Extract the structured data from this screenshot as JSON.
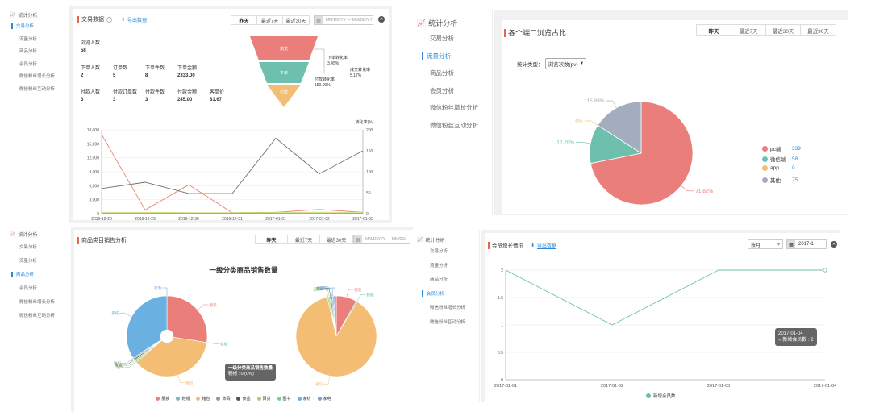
{
  "panel_tl": {
    "sidebar": {
      "header": "统计分析",
      "items": [
        "交易分析",
        "流量分析",
        "商品分析",
        "会员分析",
        "微信粉丝增长分析",
        "微信粉丝互动分析"
      ],
      "active": 0
    },
    "title": "交易数据",
    "help": "?",
    "export": "导出数据",
    "tabs": [
      "昨天",
      "最近7天",
      "最近30天"
    ],
    "active_tab": 0,
    "date_placeholder": "MM/DD/YY — MM/DD/YY",
    "funnel": {
      "labels": [
        "浏览",
        "下单",
        "付款"
      ],
      "annotations": [
        {
          "label": "下单转化率",
          "value": "3.45%"
        },
        {
          "label": "成交转化率",
          "value": "5.17%"
        },
        {
          "label": "付款转化率",
          "value": "150.00%"
        }
      ]
    },
    "metrics": [
      {
        "label": "浏览人数",
        "value": "58"
      },
      {
        "label": "下单人数",
        "value": "2"
      },
      {
        "label": "订单数",
        "value": "5"
      },
      {
        "label": "下单件数",
        "value": "8"
      },
      {
        "label": "下单金额",
        "value": "2333.00"
      },
      {
        "label": "付款人数",
        "value": "3"
      },
      {
        "label": "付款订单数",
        "value": "3"
      },
      {
        "label": "付款件数",
        "value": "3"
      },
      {
        "label": "付款金额",
        "value": "245.00"
      },
      {
        "label": "客单价",
        "value": "81.67"
      }
    ],
    "right_axis_title": "转化率(%)",
    "chart_data": {
      "type": "line",
      "x": [
        "2016-12-28",
        "2016-12-29",
        "2016-12-30",
        "2016-12-31",
        "2017-01-01",
        "2017-01-02",
        "2017-01-03"
      ],
      "y_left_ticks": [
        "18,000",
        "15,000",
        "12,000",
        "9,000",
        "6,000",
        "3,000",
        "0"
      ],
      "y_right_ticks": [
        "200",
        "150",
        "100",
        "50",
        "0"
      ],
      "ylim_left": [
        0,
        18000
      ],
      "ylim_right": [
        0,
        200
      ],
      "series": [
        {
          "color": "#e9826e",
          "axis": "left",
          "values": [
            17000,
            800,
            6200,
            200,
            300,
            900,
            300
          ]
        },
        {
          "color": "#6f6f6f",
          "axis": "right",
          "values": [
            60,
            75,
            48,
            48,
            180,
            95,
            150
          ]
        },
        {
          "color": "#c6d96f",
          "axis": "left",
          "values": [
            300,
            300,
            200,
            200,
            300,
            300,
            300
          ]
        },
        {
          "color": "#6ab0e0",
          "axis": "left",
          "values": [
            100,
            100,
            100,
            100,
            100,
            100,
            100
          ]
        }
      ]
    }
  },
  "panel_tr": {
    "sidebar": {
      "header": "统计分析",
      "items": [
        "交易分析",
        "流量分析",
        "商品分析",
        "会员分析",
        "微信粉丝增长分析",
        "微信粉丝互动分析"
      ],
      "active": 1
    },
    "title": "各个端口浏览占比",
    "tabs": [
      "昨天",
      "最近7天",
      "最近30天",
      "最近90天"
    ],
    "active_tab": 0,
    "select_label": "统计类型：",
    "select_value": "浏览次数(pv)",
    "chart_data": {
      "type": "pie",
      "slices": [
        {
          "label": "pc端",
          "value": 339,
          "pct": "71.82%",
          "color": "#ea7e7a"
        },
        {
          "label": "微信端",
          "value": 58,
          "pct": "12.29%",
          "color": "#6fbfae"
        },
        {
          "label": "app",
          "value": 0,
          "pct": "0%",
          "color": "#f3bd74"
        },
        {
          "label": "其他",
          "value": 75,
          "pct": "15.89%",
          "color": "#a3adbd"
        }
      ]
    }
  },
  "panel_bl": {
    "sidebar": {
      "header": "统计分析",
      "items": [
        "交易分析",
        "流量分析",
        "商品分析",
        "会员分析",
        "微信粉丝增长分析",
        "微信粉丝互动分析"
      ],
      "active": 2
    },
    "title": "商品类目销售分析",
    "tabs": [
      "昨天",
      "最近7天",
      "最近30天"
    ],
    "active_tab": 0,
    "date_placeholder": "MM/DD/YY — MM/DD/",
    "chart_title": "一级分类商品销售数量",
    "tooltip": {
      "title": "一级分类商品销售数量",
      "line": "鞋帽 : 0 (0%)"
    },
    "chart_data": {
      "type": "pie",
      "legend": [
        {
          "label": "服装",
          "color": "#ea7e7a"
        },
        {
          "label": "鞋帽",
          "color": "#6fbfae"
        },
        {
          "label": "箱包",
          "color": "#f3bd74"
        },
        {
          "label": "数码",
          "color": "#8e98ad"
        },
        {
          "label": "食品",
          "color": "#555555"
        },
        {
          "label": "百货",
          "color": "#a5d36d"
        },
        {
          "label": "图书",
          "color": "#7ad08a"
        },
        {
          "label": "家纺",
          "color": "#6ab0e0"
        },
        {
          "label": "家电",
          "color": "#7e9bd3"
        }
      ],
      "pies": [
        {
          "slices": [
            {
              "label": "服装",
              "value": 25,
              "color": "#ea7e7a"
            },
            {
              "label": "鞋帽",
              "value": 0,
              "color": "#6fbfae"
            },
            {
              "label": "箱包",
              "value": 33,
              "color": "#f3bd74"
            },
            {
              "label": "图书",
              "value": 0.5,
              "color": "#7ad08a"
            },
            {
              "label": "百货",
              "value": 0.5,
              "color": "#a5d36d"
            },
            {
              "label": "食品",
              "value": 0.5,
              "color": "#555555"
            },
            {
              "label": "数码",
              "value": 0.5,
              "color": "#8e98ad"
            },
            {
              "label": "家纺",
              "value": 31,
              "color": "#6ab0e0"
            },
            {
              "label": "家电",
              "value": 0,
              "color": "#7e9bd3"
            }
          ]
        },
        {
          "slices": [
            {
              "label": "服装",
              "value": 8,
              "color": "#ea7e7a"
            },
            {
              "label": "鞋帽",
              "value": 0.5,
              "color": "#6fbfae"
            },
            {
              "label": "箱包",
              "value": 85,
              "color": "#f3bd74"
            },
            {
              "label": "图书",
              "value": 0.5,
              "color": "#7ad08a"
            },
            {
              "label": "百货",
              "value": 0.5,
              "color": "#a5d36d"
            },
            {
              "label": "食品",
              "value": 0.5,
              "color": "#555555"
            },
            {
              "label": "数码",
              "value": 0.5,
              "color": "#8e98ad"
            },
            {
              "label": "家纺",
              "value": 0.5,
              "color": "#6ab0e0"
            },
            {
              "label": "家电",
              "value": 1,
              "color": "#7e9bd3"
            }
          ]
        }
      ]
    }
  },
  "panel_br": {
    "sidebar": {
      "header": "统计分析",
      "items": [
        "交易分析",
        "流量分析",
        "商品分析",
        "会员分析",
        "微信粉丝增长分析",
        "微信粉丝互动分析"
      ],
      "active": 3
    },
    "title": "会员增长情况",
    "export": "导出数据",
    "select_value": "按月",
    "date_value": "2017-1",
    "tooltip": {
      "date": "2017-01-04",
      "line": "新增会员数 : 2"
    },
    "legend": "新增会员数",
    "chart_data": {
      "type": "line",
      "x": [
        "2017-01-01",
        "2017-01-02",
        "2017-01-03",
        "2017-01-04"
      ],
      "y_ticks": [
        "2",
        "1.5",
        "1",
        "0.5",
        "0"
      ],
      "ylim": [
        0,
        2
      ],
      "series": [
        {
          "name": "新增会员数",
          "color": "#6fbfae",
          "values": [
            2,
            1,
            2,
            2
          ]
        }
      ]
    }
  }
}
